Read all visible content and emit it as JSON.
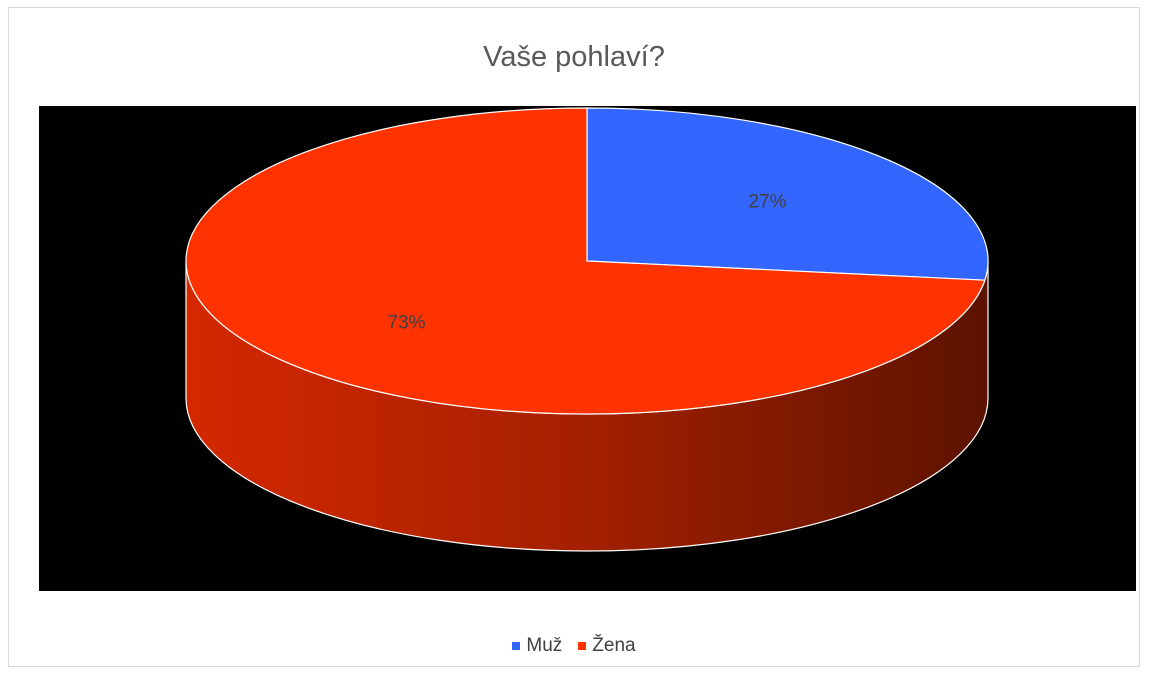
{
  "chart_data": {
    "type": "pie",
    "title": "Vaše pohlaví?",
    "categories": [
      "Muž",
      "Žena"
    ],
    "values": [
      27,
      73
    ],
    "labels": [
      "27%",
      "73%"
    ],
    "colors": [
      "#3366ff",
      "#ff3300"
    ],
    "plot_background": "#000000",
    "legend": "bottom",
    "style": "3d"
  }
}
